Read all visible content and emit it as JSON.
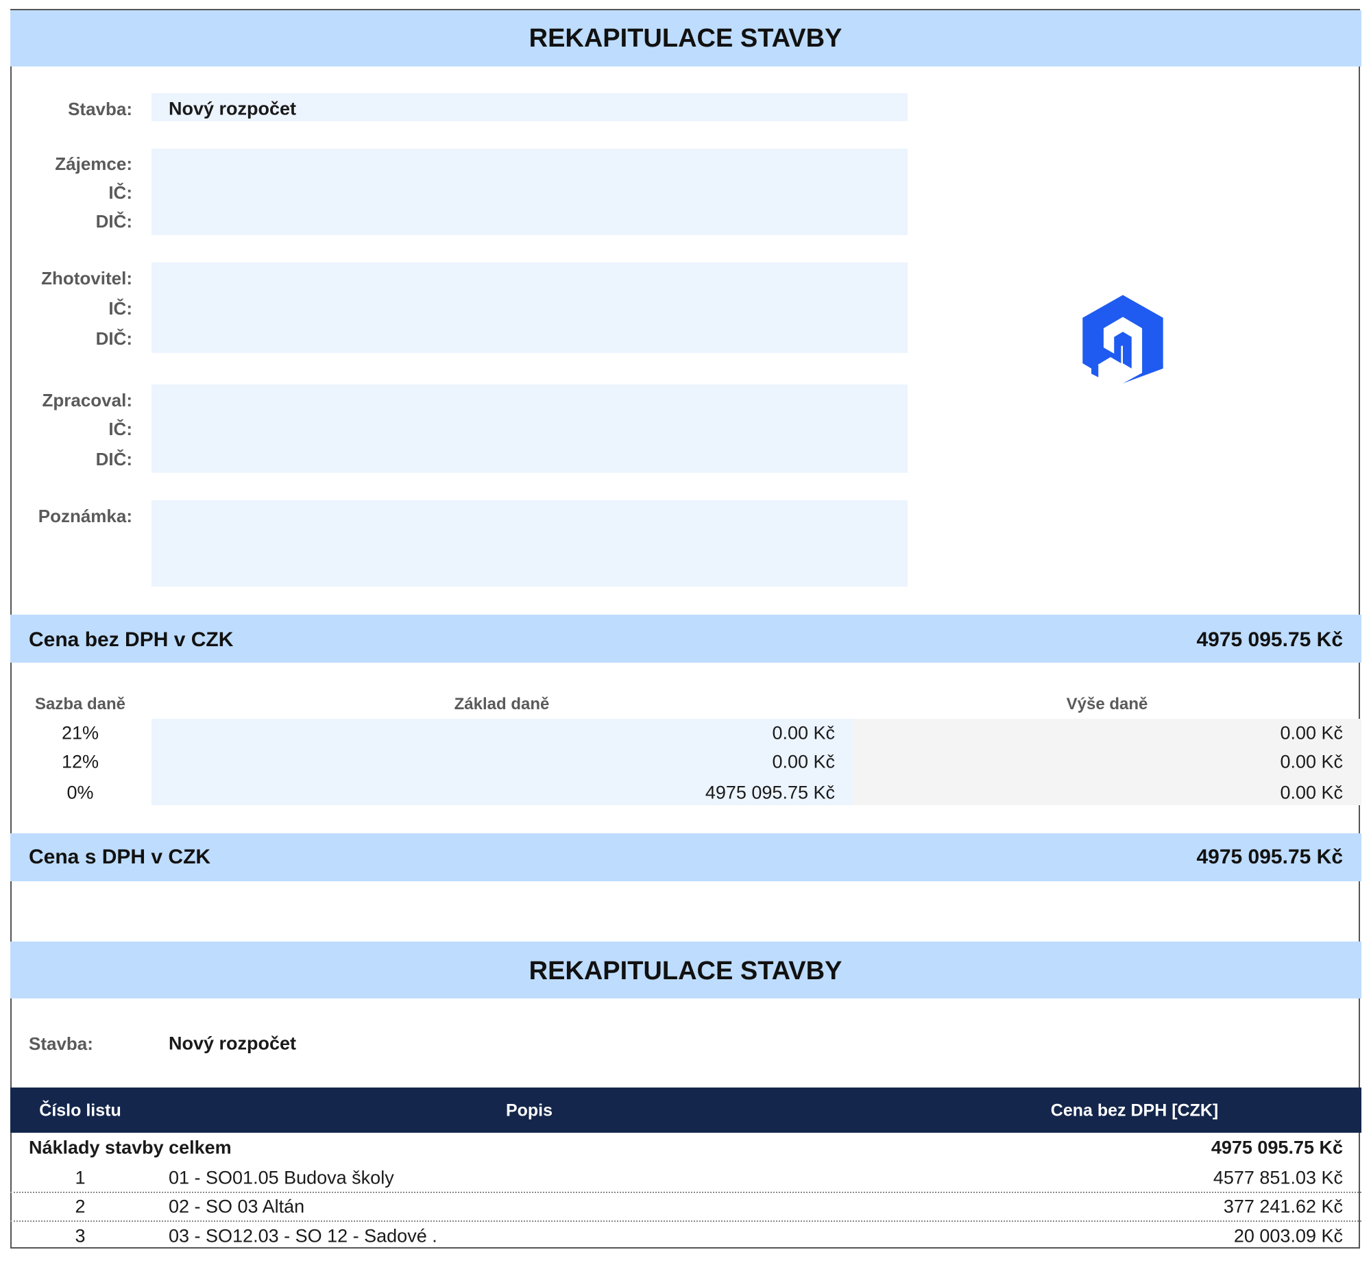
{
  "header": {
    "title": "REKAPITULACE STAVBY"
  },
  "form": {
    "stavba": {
      "label": "Stavba:",
      "value": "Nový rozpočet"
    },
    "parties": [
      [
        "Zájemce:",
        "IČ:",
        "DIČ:"
      ],
      [
        "Zhotovitel:",
        "IČ:",
        "DIČ:"
      ],
      [
        "Zpracoval:",
        "IČ:",
        "DIČ:"
      ]
    ],
    "note": "Poznámka:"
  },
  "price_without_vat": {
    "label": "Cena bez DPH v CZK",
    "value": "4975 095.75 Kč"
  },
  "tax": {
    "headers": [
      "Sazba daně",
      "Základ daně",
      "Výše daně"
    ],
    "rows": [
      [
        "21%",
        "0.00 Kč",
        "0.00 Kč"
      ],
      [
        "12%",
        "0.00 Kč",
        "0.00 Kč"
      ],
      [
        "0%",
        "4975 095.75 Kč",
        "0.00 Kč"
      ]
    ]
  },
  "price_with_vat": {
    "label": "Cena s DPH v CZK",
    "value": "4975 095.75 Kč"
  },
  "section2": {
    "title": "REKAPITULACE STAVBY",
    "stavba_label": "Stavba:",
    "stavba_value": "Nový rozpočet"
  },
  "table": {
    "headers": [
      "Číslo listu",
      "Popis",
      "Cena bez DPH [CZK]"
    ],
    "total": {
      "label": "Náklady stavby celkem",
      "value": "4975 095.75 Kč"
    },
    "rows": [
      [
        "1",
        "01 - SO01.05 Budova školy",
        "4577 851.03 Kč"
      ],
      [
        "2",
        "02 - SO 03 Altán",
        "377 241.62 Kč"
      ],
      [
        "3",
        "03 - SO12.03 - SO 12 - Sadové .",
        "20 003.09 Kč"
      ]
    ]
  }
}
